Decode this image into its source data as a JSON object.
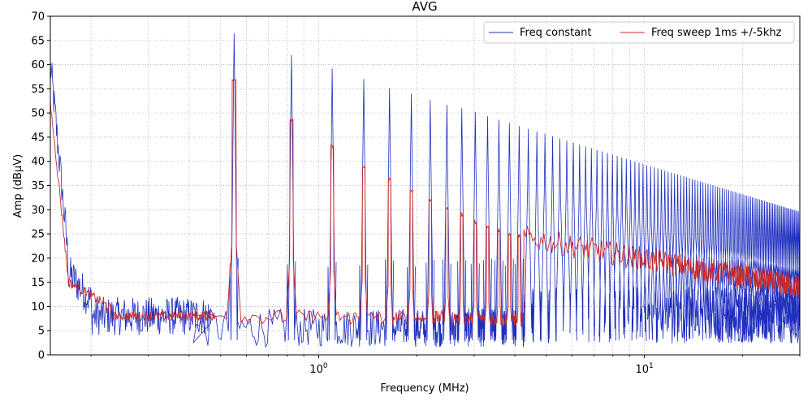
{
  "chart_data": {
    "type": "line",
    "title": "AVG",
    "xlabel": "Frequency (MHz)",
    "ylabel": "Amp (dBµV)",
    "xscale": "log",
    "xlim": [
      0.15,
      30
    ],
    "ylim": [
      0,
      70
    ],
    "grid": true,
    "yticks": [
      0,
      5,
      10,
      15,
      20,
      25,
      30,
      35,
      40,
      45,
      50,
      55,
      60,
      65,
      70
    ],
    "ytick_labels": [
      "0",
      "5",
      "10",
      "15",
      "20",
      "25",
      "30",
      "35",
      "40",
      "45",
      "50",
      "55",
      "60",
      "65",
      "70"
    ],
    "xticks_major": [
      1,
      10
    ],
    "xtick_labels": [
      {
        "base": "10",
        "exp": "0"
      },
      {
        "base": "10",
        "exp": "1"
      }
    ],
    "legend": {
      "placement": "upper right",
      "entries": [
        "Freq constant",
        "Freq sweep 1ms +/-5khz"
      ]
    },
    "series": [
      {
        "name": "Freq constant",
        "color": "#1f2fbf",
        "fundamental_mhz": 0.275,
        "harmonics": [
          2,
          3,
          4,
          5,
          6,
          7,
          8,
          9,
          10,
          11,
          12,
          13,
          14,
          15
        ],
        "peak_dbuv": [
          66.5,
          62,
          59.2,
          57,
          55.2,
          54,
          52.7,
          51.7,
          51,
          50.2,
          49.3,
          48.6,
          48,
          47.3
        ],
        "envelope_end_dbuv": 29.5
      },
      {
        "name": "Freq sweep 1ms +/-5khz",
        "color": "#cc2a2a",
        "plateaus": [
          {
            "harmonic": 2,
            "level_dbuv": 57
          },
          {
            "harmonic": 3,
            "level_dbuv": 48.5
          },
          {
            "harmonic": 4,
            "level_dbuv": 43
          },
          {
            "harmonic": 5,
            "level_dbuv": 39
          },
          {
            "harmonic": 6,
            "level_dbuv": 36.2
          },
          {
            "harmonic": 7,
            "level_dbuv": 34
          },
          {
            "harmonic": 8,
            "level_dbuv": 32
          },
          {
            "harmonic": 9,
            "level_dbuv": 30.2
          },
          {
            "harmonic": 10,
            "level_dbuv": 29
          },
          {
            "harmonic": 11,
            "level_dbuv": 27.5
          },
          {
            "harmonic": 12,
            "level_dbuv": 26.5
          },
          {
            "harmonic": 13,
            "level_dbuv": 25.8
          },
          {
            "harmonic": 14,
            "level_dbuv": 25
          },
          {
            "harmonic": 15,
            "level_dbuv": 24.5
          }
        ],
        "start_dbuv": 52,
        "end_dbuv": 14
      }
    ]
  }
}
